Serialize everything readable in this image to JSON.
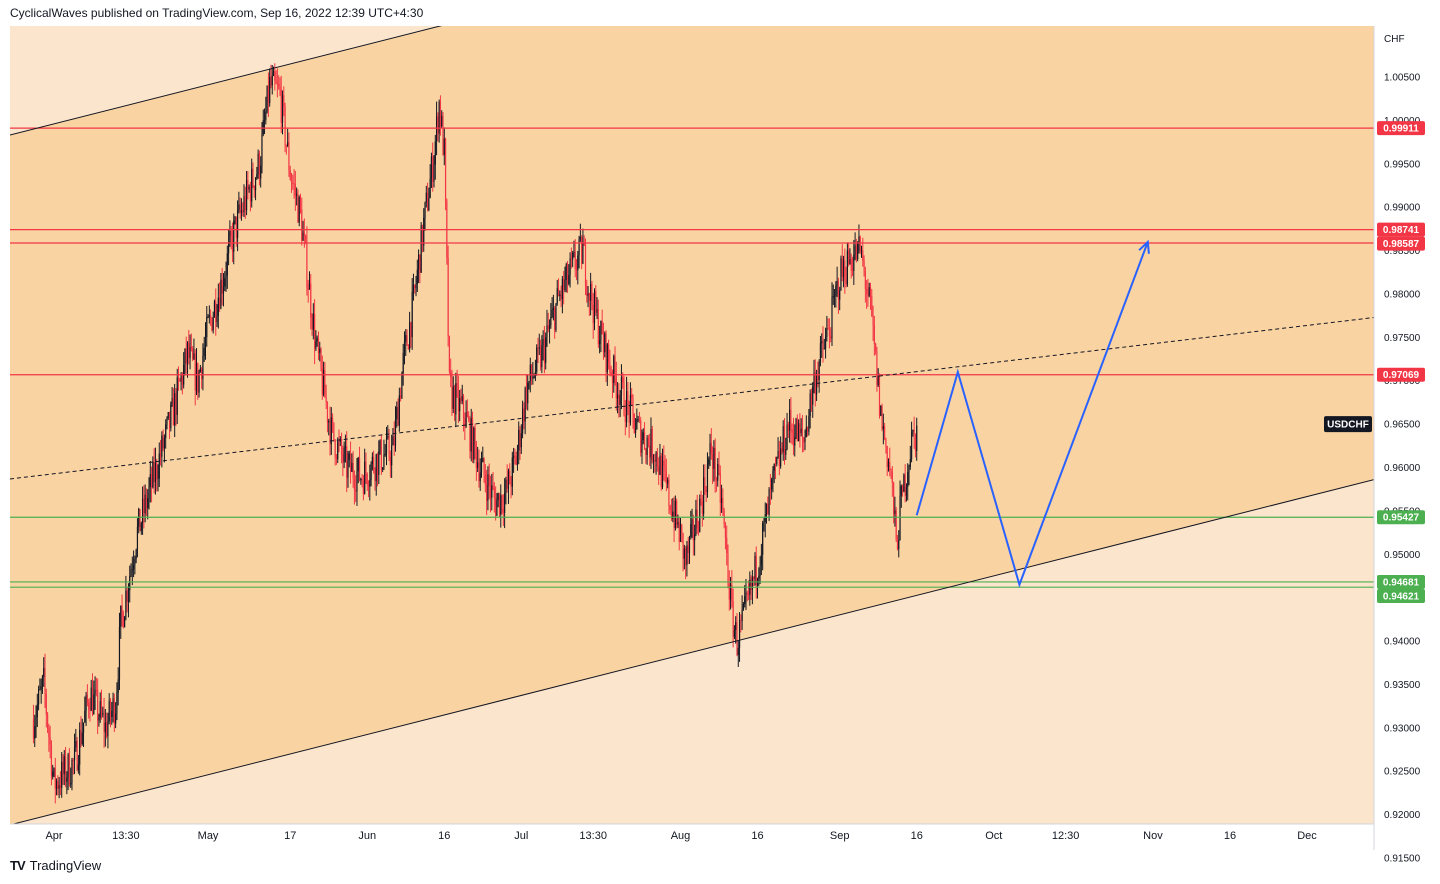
{
  "header": {
    "text": "CyclicalWaves published on TradingView.com, Sep 16, 2022 12:39 UTC+4:30"
  },
  "footer": {
    "logo": "TV",
    "brand": "TradingView"
  },
  "colors": {
    "channel_fill": "#fad3a3",
    "outer_fill": "#fbe5cd",
    "resistance": "#f23645",
    "support": "#4caf50",
    "projection": "#2962ff",
    "candle_up": "#131722",
    "candle_down": "#f23645",
    "symbol_badge": "#131722"
  },
  "chart_data": {
    "type": "line",
    "symbol": "USDCHF",
    "currency": "CHF",
    "ylim": [
      0.9145,
      1.0155
    ],
    "y_ticks": [
      "1.00500",
      "1.00000",
      "0.99500",
      "0.99000",
      "0.98500",
      "0.98000",
      "0.97500",
      "0.97000",
      "0.96500",
      "0.96000",
      "0.95500",
      "0.95000",
      "0.94500",
      "0.94000",
      "0.93500",
      "0.93000",
      "0.92500",
      "0.92000",
      "0.91500"
    ],
    "x_ticks": [
      {
        "label": "Apr",
        "date": "2022-04-01"
      },
      {
        "label": "13:30",
        "date": "2022-04-15"
      },
      {
        "label": "May",
        "date": "2022-05-01"
      },
      {
        "label": "17",
        "date": "2022-05-17"
      },
      {
        "label": "Jun",
        "date": "2022-06-01"
      },
      {
        "label": "16",
        "date": "2022-06-16"
      },
      {
        "label": "Jul",
        "date": "2022-07-01"
      },
      {
        "label": "13:30",
        "date": "2022-07-15"
      },
      {
        "label": "Aug",
        "date": "2022-08-01"
      },
      {
        "label": "16",
        "date": "2022-08-16"
      },
      {
        "label": "Sep",
        "date": "2022-09-01"
      },
      {
        "label": "16",
        "date": "2022-09-16"
      },
      {
        "label": "Oct",
        "date": "2022-10-01"
      },
      {
        "label": "12:30",
        "date": "2022-10-15"
      },
      {
        "label": "Nov",
        "date": "2022-11-01"
      },
      {
        "label": "16",
        "date": "2022-11-16"
      },
      {
        "label": "Dec",
        "date": "2022-12-01"
      }
    ],
    "price_path": [
      [
        "2022-03-28",
        0.931
      ],
      [
        "2022-03-30",
        0.935
      ],
      [
        "2022-04-01",
        0.9235
      ],
      [
        "2022-04-05",
        0.926
      ],
      [
        "2022-04-08",
        0.934
      ],
      [
        "2022-04-11",
        0.93
      ],
      [
        "2022-04-13",
        0.933
      ],
      [
        "2022-04-14",
        0.942
      ],
      [
        "2022-04-17",
        0.952
      ],
      [
        "2022-04-20",
        0.958
      ],
      [
        "2022-04-24",
        0.966
      ],
      [
        "2022-04-27",
        0.973
      ],
      [
        "2022-04-29",
        0.97
      ],
      [
        "2022-05-01",
        0.976
      ],
      [
        "2022-05-04",
        0.982
      ],
      [
        "2022-05-06",
        0.987
      ],
      [
        "2022-05-09",
        0.992
      ],
      [
        "2022-05-11",
        0.995
      ],
      [
        "2022-05-13",
        1.004
      ],
      [
        "2022-05-15",
        1.003
      ],
      [
        "2022-05-17",
        0.994
      ],
      [
        "2022-05-19",
        0.989
      ],
      [
        "2022-05-22",
        0.974
      ],
      [
        "2022-05-25",
        0.964
      ],
      [
        "2022-05-28",
        0.96
      ],
      [
        "2022-05-31",
        0.959
      ],
      [
        "2022-06-03",
        0.961
      ],
      [
        "2022-06-06",
        0.962
      ],
      [
        "2022-06-08",
        0.972
      ],
      [
        "2022-06-10",
        0.979
      ],
      [
        "2022-06-12",
        0.988
      ],
      [
        "2022-06-14",
        0.996
      ],
      [
        "2022-06-15",
        1.002
      ],
      [
        "2022-06-16",
        0.996
      ],
      [
        "2022-06-17",
        0.969
      ],
      [
        "2022-06-20",
        0.966
      ],
      [
        "2022-06-23",
        0.96
      ],
      [
        "2022-06-26",
        0.956
      ],
      [
        "2022-06-28",
        0.957
      ],
      [
        "2022-06-30",
        0.961
      ],
      [
        "2022-07-02",
        0.969
      ],
      [
        "2022-07-05",
        0.973
      ],
      [
        "2022-07-08",
        0.979
      ],
      [
        "2022-07-11",
        0.983
      ],
      [
        "2022-07-13",
        0.985
      ],
      [
        "2022-07-14",
        0.981
      ],
      [
        "2022-07-17",
        0.974
      ],
      [
        "2022-07-20",
        0.969
      ],
      [
        "2022-07-24",
        0.964
      ],
      [
        "2022-07-27",
        0.962
      ],
      [
        "2022-07-30",
        0.956
      ],
      [
        "2022-08-01",
        0.952
      ],
      [
        "2022-08-02",
        0.949
      ],
      [
        "2022-08-05",
        0.956
      ],
      [
        "2022-08-07",
        0.962
      ],
      [
        "2022-08-09",
        0.956
      ],
      [
        "2022-08-11",
        0.943
      ],
      [
        "2022-08-12",
        0.94
      ],
      [
        "2022-08-14",
        0.944
      ],
      [
        "2022-08-16",
        0.949
      ],
      [
        "2022-08-19",
        0.958
      ],
      [
        "2022-08-22",
        0.965
      ],
      [
        "2022-08-25",
        0.963
      ],
      [
        "2022-08-27",
        0.97
      ],
      [
        "2022-08-30",
        0.976
      ],
      [
        "2022-09-01",
        0.982
      ],
      [
        "2022-09-03",
        0.984
      ],
      [
        "2022-09-05",
        0.985
      ],
      [
        "2022-09-07",
        0.978
      ],
      [
        "2022-09-09",
        0.966
      ],
      [
        "2022-09-11",
        0.959
      ],
      [
        "2022-09-12",
        0.951
      ],
      [
        "2022-09-13",
        0.956
      ],
      [
        "2022-09-15",
        0.963
      ],
      [
        "2022-09-16",
        0.964
      ]
    ],
    "levels": [
      {
        "label": "0.99911",
        "value": 0.99911,
        "kind": "resistance"
      },
      {
        "label": "0.98741",
        "value": 0.98741,
        "kind": "resistance"
      },
      {
        "label": "0.98587",
        "value": 0.98587,
        "kind": "resistance"
      },
      {
        "label": "0.97069",
        "value": 0.97069,
        "kind": "resistance"
      },
      {
        "label": "0.95427",
        "value": 0.95427,
        "kind": "support"
      },
      {
        "label": "0.94681",
        "value": 0.94681,
        "kind": "support"
      },
      {
        "label": "0.94621",
        "value": 0.94621,
        "kind": "support"
      }
    ],
    "channel": {
      "upper": [
        [
          "2022-03-28",
          0.999
        ],
        [
          "2022-06-16",
          1.011
        ]
      ],
      "lower": [
        [
          "2022-03-28",
          0.9195
        ],
        [
          "2022-12-10",
          0.958
        ]
      ],
      "midline": [
        [
          "2022-03-28",
          0.959
        ],
        [
          "2022-12-10",
          0.977
        ]
      ]
    },
    "projection": [
      [
        "2022-09-16",
        0.9545
      ],
      [
        "2022-09-24",
        0.971
      ],
      [
        "2022-10-06",
        0.9465
      ],
      [
        "2022-10-31",
        0.986
      ]
    ],
    "last_price_label": "USDCHF",
    "last_price": 0.965,
    "grid": false,
    "legend": "none"
  }
}
